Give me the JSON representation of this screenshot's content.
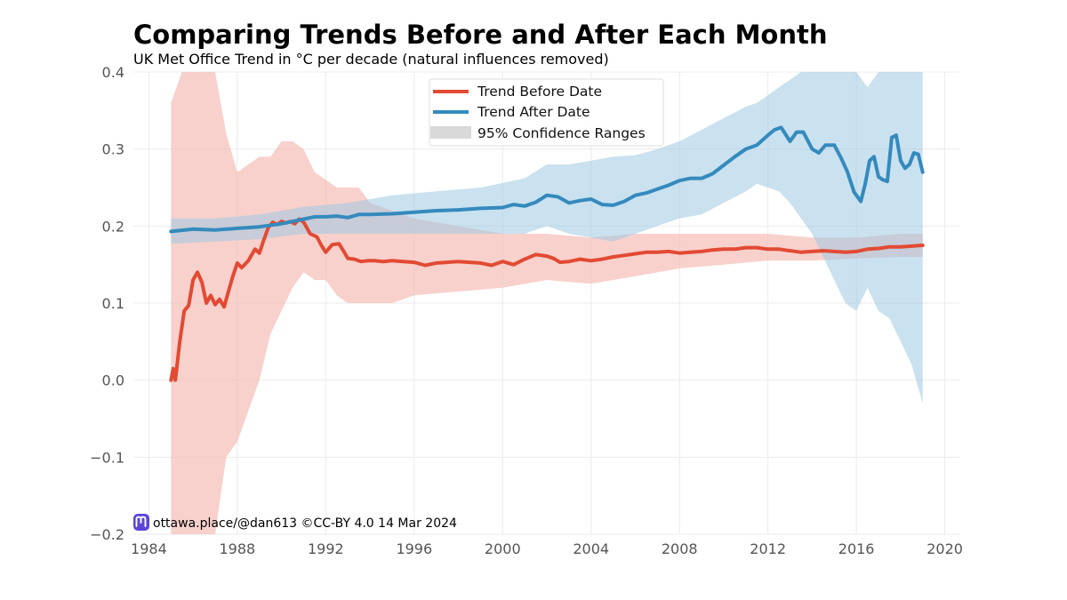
{
  "chart_data": {
    "type": "line",
    "title": "Comparing Trends Before and After Each Month",
    "subtitle": "UK Met Office Trend in °C per decade (natural influences removed)",
    "xlabel": "",
    "ylabel": "",
    "xlim": [
      1983.3,
      2020.7
    ],
    "ylim": [
      -0.2,
      0.4
    ],
    "x_ticks": [
      1984,
      1988,
      1992,
      1996,
      2000,
      2004,
      2008,
      2012,
      2016,
      2020
    ],
    "y_ticks": [
      -0.2,
      -0.1,
      0.0,
      0.1,
      0.2,
      0.3,
      0.4
    ],
    "y_tick_labels": [
      "−0.2",
      "−0.1",
      "0.0",
      "0.1",
      "0.2",
      "0.3",
      "0.4"
    ],
    "grid": true,
    "legend_position": "top-center",
    "legend": [
      "Trend Before Date",
      "Trend After Date",
      "95% Confidence Ranges"
    ],
    "colors": {
      "before": "#e24a33",
      "after": "#348abd",
      "before_band": "#f4b9b1",
      "after_band": "#9fc8e2",
      "legend_band": "#d9d9d9",
      "grid": "#ebebeb",
      "tick_text": "#555555"
    },
    "series": [
      {
        "name": "Trend Before Date",
        "x": [
          1985.0,
          1985.1,
          1985.2,
          1985.4,
          1985.6,
          1985.8,
          1986.0,
          1986.2,
          1986.4,
          1986.6,
          1986.8,
          1987.0,
          1987.2,
          1987.4,
          1987.6,
          1987.8,
          1988.0,
          1988.2,
          1988.5,
          1988.8,
          1989.0,
          1989.2,
          1989.4,
          1989.6,
          1989.8,
          1990.0,
          1990.2,
          1990.4,
          1990.6,
          1990.8,
          1991.0,
          1991.3,
          1991.6,
          1991.8,
          1992.0,
          1992.3,
          1992.6,
          1992.8,
          1993.0,
          1993.3,
          1993.6,
          1993.9,
          1994.2,
          1994.6,
          1995.0,
          1995.5,
          1996.0,
          1996.5,
          1997.0,
          1997.5,
          1998.0,
          1998.5,
          1999.0,
          1999.5,
          2000.0,
          2000.5,
          2001.0,
          2001.5,
          2002.0,
          2002.3,
          2002.6,
          2003.0,
          2003.5,
          2004.0,
          2004.5,
          2005.0,
          2005.5,
          2006.0,
          2006.5,
          2007.0,
          2007.5,
          2008.0,
          2008.5,
          2009.0,
          2009.5,
          2010.0,
          2010.5,
          2011.0,
          2011.5,
          2012.0,
          2012.5,
          2013.0,
          2013.5,
          2014.0,
          2014.5,
          2015.0,
          2015.5,
          2016.0,
          2016.5,
          2017.0,
          2017.5,
          2018.0,
          2018.5,
          2019.0
        ],
        "values": [
          0.0,
          0.015,
          0.0,
          0.05,
          0.09,
          0.097,
          0.13,
          0.14,
          0.127,
          0.1,
          0.11,
          0.098,
          0.105,
          0.095,
          0.115,
          0.135,
          0.152,
          0.146,
          0.155,
          0.17,
          0.165,
          0.182,
          0.198,
          0.205,
          0.202,
          0.206,
          0.204,
          0.206,
          0.203,
          0.209,
          0.205,
          0.19,
          0.186,
          0.175,
          0.166,
          0.176,
          0.177,
          0.168,
          0.158,
          0.157,
          0.154,
          0.155,
          0.155,
          0.154,
          0.155,
          0.154,
          0.153,
          0.149,
          0.152,
          0.153,
          0.154,
          0.153,
          0.152,
          0.149,
          0.154,
          0.15,
          0.157,
          0.163,
          0.161,
          0.158,
          0.153,
          0.154,
          0.157,
          0.155,
          0.157,
          0.16,
          0.162,
          0.164,
          0.166,
          0.166,
          0.167,
          0.165,
          0.166,
          0.167,
          0.169,
          0.17,
          0.17,
          0.172,
          0.172,
          0.17,
          0.17,
          0.168,
          0.166,
          0.167,
          0.168,
          0.167,
          0.166,
          0.167,
          0.17,
          0.171,
          0.173,
          0.173,
          0.174,
          0.175
        ]
      },
      {
        "name": "Trend After Date",
        "x": [
          1985.0,
          1986.0,
          1987.0,
          1988.0,
          1989.0,
          1990.0,
          1991.0,
          1991.5,
          1992.0,
          1992.5,
          1993.0,
          1993.5,
          1994.0,
          1995.0,
          1996.0,
          1997.0,
          1998.0,
          1999.0,
          2000.0,
          2000.5,
          2001.0,
          2001.5,
          2002.0,
          2002.5,
          2003.0,
          2003.5,
          2004.0,
          2004.5,
          2005.0,
          2005.5,
          2006.0,
          2006.5,
          2007.0,
          2007.5,
          2008.0,
          2008.5,
          2009.0,
          2009.5,
          2010.0,
          2010.5,
          2011.0,
          2011.5,
          2012.0,
          2012.3,
          2012.6,
          2013.0,
          2013.3,
          2013.6,
          2014.0,
          2014.3,
          2014.6,
          2015.0,
          2015.3,
          2015.6,
          2015.9,
          2016.2,
          2016.4,
          2016.6,
          2016.8,
          2017.0,
          2017.2,
          2017.4,
          2017.6,
          2017.8,
          2018.0,
          2018.2,
          2018.4,
          2018.6,
          2018.8,
          2019.0
        ],
        "values": [
          0.193,
          0.196,
          0.195,
          0.197,
          0.199,
          0.203,
          0.209,
          0.212,
          0.212,
          0.213,
          0.211,
          0.215,
          0.215,
          0.216,
          0.218,
          0.22,
          0.221,
          0.223,
          0.224,
          0.228,
          0.226,
          0.231,
          0.24,
          0.238,
          0.23,
          0.233,
          0.235,
          0.228,
          0.227,
          0.232,
          0.24,
          0.243,
          0.248,
          0.253,
          0.259,
          0.262,
          0.262,
          0.268,
          0.279,
          0.29,
          0.3,
          0.305,
          0.318,
          0.325,
          0.328,
          0.31,
          0.322,
          0.322,
          0.3,
          0.295,
          0.305,
          0.305,
          0.289,
          0.27,
          0.244,
          0.232,
          0.255,
          0.285,
          0.29,
          0.264,
          0.26,
          0.258,
          0.315,
          0.318,
          0.285,
          0.275,
          0.28,
          0.295,
          0.293,
          0.27
        ]
      }
    ],
    "bands": [
      {
        "name": "Trend Before Date 95% range",
        "x": [
          1985.0,
          1985.5,
          1986.0,
          1986.5,
          1987.0,
          1987.5,
          1988.0,
          1988.5,
          1989.0,
          1989.5,
          1990.0,
          1990.5,
          1991.0,
          1991.5,
          1992.0,
          1992.5,
          1993.0,
          1993.5,
          1994.0,
          1995.0,
          1996.0,
          1998.0,
          2000.0,
          2002.0,
          2004.0,
          2006.0,
          2008.0,
          2010.0,
          2012.0,
          2014.0,
          2016.0,
          2018.0,
          2019.0
        ],
        "lower": [
          -0.2,
          -0.2,
          -0.2,
          -0.2,
          -0.2,
          -0.1,
          -0.08,
          -0.04,
          0.0,
          0.06,
          0.09,
          0.12,
          0.14,
          0.13,
          0.13,
          0.11,
          0.1,
          0.1,
          0.1,
          0.1,
          0.11,
          0.115,
          0.12,
          0.13,
          0.125,
          0.135,
          0.145,
          0.15,
          0.155,
          0.155,
          0.158,
          0.16,
          0.16
        ],
        "upper": [
          0.36,
          0.4,
          0.4,
          0.4,
          0.4,
          0.32,
          0.27,
          0.28,
          0.29,
          0.29,
          0.31,
          0.31,
          0.3,
          0.27,
          0.26,
          0.25,
          0.25,
          0.25,
          0.23,
          0.22,
          0.21,
          0.2,
          0.19,
          0.19,
          0.185,
          0.19,
          0.19,
          0.19,
          0.19,
          0.185,
          0.185,
          0.19,
          0.19
        ]
      },
      {
        "name": "Trend After Date 95% range",
        "x": [
          1985.0,
          1987.0,
          1989.0,
          1991.0,
          1993.0,
          1995.0,
          1997.0,
          1999.0,
          2001.0,
          2002.0,
          2003.0,
          2004.0,
          2005.0,
          2006.0,
          2007.0,
          2008.0,
          2009.0,
          2010.0,
          2011.0,
          2011.5,
          2012.0,
          2012.5,
          2013.0,
          2013.5,
          2014.0,
          2014.5,
          2015.0,
          2015.5,
          2016.0,
          2016.5,
          2017.0,
          2017.5,
          2018.0,
          2018.5,
          2019.0
        ],
        "lower": [
          0.177,
          0.18,
          0.183,
          0.19,
          0.19,
          0.19,
          0.19,
          0.19,
          0.19,
          0.2,
          0.19,
          0.185,
          0.18,
          0.19,
          0.2,
          0.21,
          0.215,
          0.23,
          0.245,
          0.255,
          0.25,
          0.245,
          0.23,
          0.21,
          0.19,
          0.16,
          0.13,
          0.1,
          0.09,
          0.12,
          0.09,
          0.08,
          0.05,
          0.02,
          -0.03
        ],
        "upper": [
          0.21,
          0.21,
          0.215,
          0.225,
          0.23,
          0.24,
          0.245,
          0.25,
          0.262,
          0.28,
          0.28,
          0.285,
          0.29,
          0.292,
          0.3,
          0.31,
          0.325,
          0.34,
          0.355,
          0.36,
          0.37,
          0.38,
          0.39,
          0.4,
          0.4,
          0.4,
          0.4,
          0.4,
          0.4,
          0.38,
          0.4,
          0.4,
          0.4,
          0.4,
          0.4
        ]
      }
    ]
  },
  "credit": {
    "icon": "mastodon-icon",
    "text": "ottawa.place/@dan613 ©CC-BY 4.0  14 Mar 2024"
  }
}
